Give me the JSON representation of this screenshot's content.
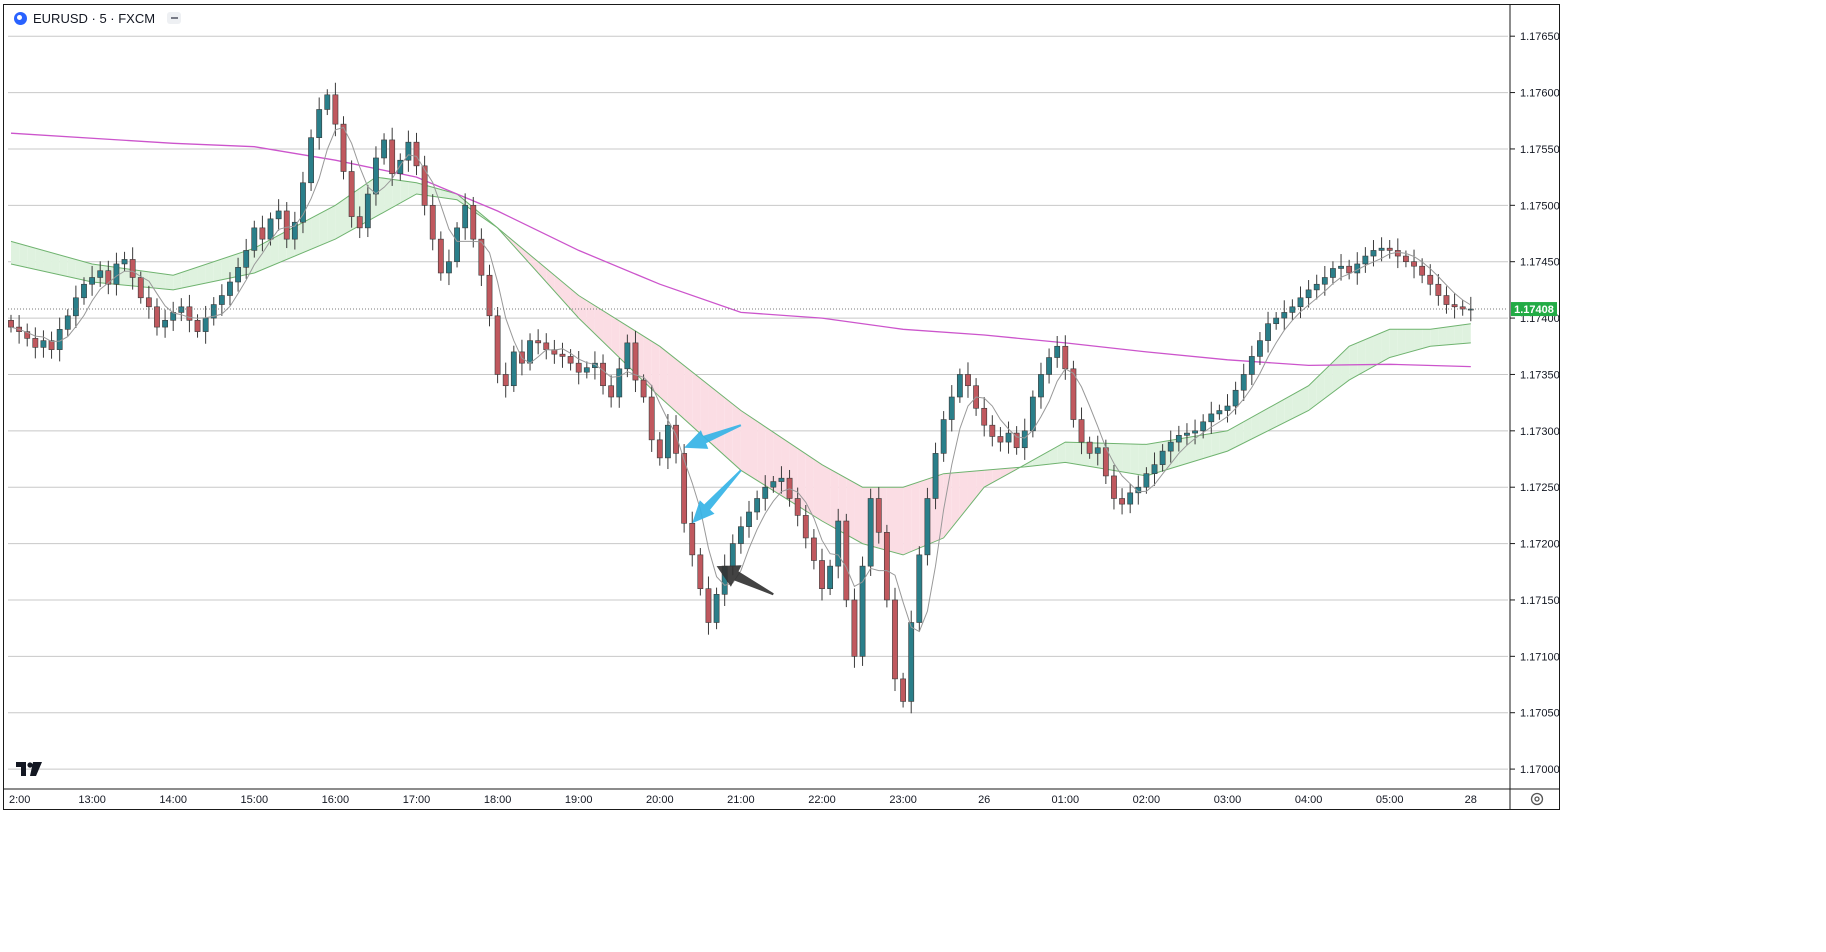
{
  "header": {
    "symbol_title": "EURUSD · 5 · FXCM",
    "logo_icon": "fxcm-logo-icon",
    "collapse_icon": "minus-icon"
  },
  "price_scale": {
    "labels": [
      "1.17650",
      "1.17600",
      "1.17550",
      "1.17500",
      "1.17450",
      "1.17400",
      "1.17350",
      "1.17300",
      "1.17250",
      "1.17200",
      "1.17150",
      "1.17100",
      "1.17050",
      "1.17000"
    ],
    "current_price_label": "1.17408"
  },
  "time_scale": {
    "labels": [
      "2:00",
      "13:00",
      "14:00",
      "15:00",
      "16:00",
      "17:00",
      "18:00",
      "19:00",
      "20:00",
      "21:00",
      "22:00",
      "23:00",
      "26",
      "01:00",
      "02:00",
      "03:00",
      "04:00",
      "05:00",
      "28"
    ]
  },
  "watermark_icon": "tradingview-logo-icon",
  "settings_icon": "gear-icon",
  "colors": {
    "up_candle": "#2a7f8a",
    "down_candle": "#c0585e",
    "long_ma": "#cc55cc",
    "cloud_bull": "#dff2df",
    "cloud_bear": "#fbdde4",
    "cloud_line": "#6fb36f",
    "fast_ma": "#999999",
    "current_price_badge": "#22ab45",
    "arrow_blue": "#35b3e6",
    "arrow_dark": "#333333"
  },
  "chart_data": {
    "type": "candlestick",
    "symbol": "EURUSD",
    "timeframe": "5",
    "source": "FXCM",
    "ylim": [
      1.16985,
      1.17675
    ],
    "current_price": 1.17408,
    "grid": "horizontal",
    "x_ticks": [
      {
        "label": "2:00",
        "index": 0
      },
      {
        "label": "13:00",
        "index": 10
      },
      {
        "label": "14:00",
        "index": 20
      },
      {
        "label": "15:00",
        "index": 30
      },
      {
        "label": "16:00",
        "index": 40
      },
      {
        "label": "17:00",
        "index": 50
      },
      {
        "label": "18:00",
        "index": 60
      },
      {
        "label": "19:00",
        "index": 70
      },
      {
        "label": "20:00",
        "index": 80
      },
      {
        "label": "21:00",
        "index": 90
      },
      {
        "label": "22:00",
        "index": 100
      },
      {
        "label": "23:00",
        "index": 110
      },
      {
        "label": "26",
        "index": 120
      },
      {
        "label": "01:00",
        "index": 130
      },
      {
        "label": "02:00",
        "index": 140
      },
      {
        "label": "03:00",
        "index": 150
      },
      {
        "label": "04:00",
        "index": 160
      },
      {
        "label": "05:00",
        "index": 170
      },
      {
        "label": "28",
        "index": 180
      }
    ],
    "closes": [
      1.17392,
      1.17388,
      1.17382,
      1.17374,
      1.1738,
      1.17372,
      1.1739,
      1.17402,
      1.17418,
      1.1743,
      1.17436,
      1.17442,
      1.1743,
      1.17448,
      1.17452,
      1.17436,
      1.17418,
      1.1741,
      1.17392,
      1.17398,
      1.17405,
      1.1741,
      1.17398,
      1.17388,
      1.174,
      1.17412,
      1.1742,
      1.17432,
      1.17445,
      1.1746,
      1.1748,
      1.1747,
      1.17488,
      1.17495,
      1.1747,
      1.17485,
      1.1752,
      1.1756,
      1.17585,
      1.17598,
      1.17572,
      1.1753,
      1.1749,
      1.1748,
      1.1751,
      1.17542,
      1.17558,
      1.17528,
      1.1754,
      1.17556,
      1.17535,
      1.175,
      1.1747,
      1.1744,
      1.1745,
      1.1748,
      1.175,
      1.1747,
      1.17438,
      1.17402,
      1.1735,
      1.1734,
      1.1737,
      1.1736,
      1.1738,
      1.17378,
      1.17372,
      1.17368,
      1.17366,
      1.1736,
      1.17352,
      1.17356,
      1.1736,
      1.1734,
      1.1733,
      1.17355,
      1.17378,
      1.17345,
      1.1733,
      1.17292,
      1.17276,
      1.17305,
      1.1728,
      1.17218,
      1.1719,
      1.1716,
      1.1713,
      1.17155,
      1.1718,
      1.172,
      1.17215,
      1.17228,
      1.1724,
      1.1725,
      1.17255,
      1.17258,
      1.1724,
      1.17225,
      1.17205,
      1.17185,
      1.1716,
      1.1718,
      1.1722,
      1.1715,
      1.171,
      1.1718,
      1.1724,
      1.1721,
      1.1715,
      1.1708,
      1.1706,
      1.1713,
      1.1719,
      1.1724,
      1.1728,
      1.1731,
      1.1733,
      1.1735,
      1.1734,
      1.1732,
      1.17305,
      1.17295,
      1.1729,
      1.17298,
      1.17285,
      1.173,
      1.1733,
      1.1735,
      1.17365,
      1.17375,
      1.17355,
      1.1731,
      1.1729,
      1.1728,
      1.17285,
      1.1726,
      1.1724,
      1.17235,
      1.17245,
      1.1725,
      1.17262,
      1.1727,
      1.17282,
      1.1729,
      1.17296,
      1.17298,
      1.173,
      1.17308,
      1.17315,
      1.17318,
      1.17322,
      1.17336,
      1.1735,
      1.17366,
      1.1738,
      1.17395,
      1.174,
      1.17405,
      1.1741,
      1.17418,
      1.17425,
      1.1743,
      1.17436,
      1.17444,
      1.17446,
      1.1744,
      1.17448,
      1.17455,
      1.1746,
      1.17462,
      1.1746,
      1.17455,
      1.1745,
      1.17446,
      1.17438,
      1.1743,
      1.1742,
      1.17412,
      1.1741,
      1.17408,
      1.17408
    ],
    "long_ma": [
      [
        0,
        1.17564
      ],
      [
        20,
        1.17555
      ],
      [
        30,
        1.17552
      ],
      [
        40,
        1.1754
      ],
      [
        50,
        1.17525
      ],
      [
        60,
        1.17495
      ],
      [
        70,
        1.1746
      ],
      [
        80,
        1.1743
      ],
      [
        90,
        1.17405
      ],
      [
        100,
        1.174
      ],
      [
        110,
        1.1739
      ],
      [
        120,
        1.17385
      ],
      [
        130,
        1.17378
      ],
      [
        140,
        1.1737
      ],
      [
        150,
        1.17363
      ],
      [
        160,
        1.17358
      ],
      [
        170,
        1.17359
      ],
      [
        180,
        1.17357
      ]
    ],
    "cloud_fast": [
      [
        0,
        1.17468
      ],
      [
        10,
        1.17448
      ],
      [
        20,
        1.17438
      ],
      [
        30,
        1.17462
      ],
      [
        40,
        1.175
      ],
      [
        45,
        1.17525
      ],
      [
        50,
        1.1752
      ],
      [
        55,
        1.1751
      ],
      [
        60,
        1.1748
      ],
      [
        70,
        1.174
      ],
      [
        80,
        1.1733
      ],
      [
        90,
        1.17265
      ],
      [
        100,
        1.1722
      ],
      [
        105,
        1.172
      ],
      [
        110,
        1.1719
      ],
      [
        115,
        1.17205
      ],
      [
        120,
        1.1725
      ],
      [
        125,
        1.1727
      ],
      [
        130,
        1.1729
      ],
      [
        140,
        1.17288
      ],
      [
        150,
        1.173
      ],
      [
        160,
        1.1734
      ],
      [
        165,
        1.17375
      ],
      [
        170,
        1.1739
      ],
      [
        175,
        1.1739
      ],
      [
        180,
        1.17395
      ]
    ],
    "cloud_slow": [
      [
        0,
        1.17448
      ],
      [
        10,
        1.17432
      ],
      [
        20,
        1.17425
      ],
      [
        30,
        1.1744
      ],
      [
        40,
        1.1747
      ],
      [
        45,
        1.1749
      ],
      [
        50,
        1.1751
      ],
      [
        55,
        1.17505
      ],
      [
        60,
        1.1748
      ],
      [
        70,
        1.1742
      ],
      [
        80,
        1.17375
      ],
      [
        90,
        1.17318
      ],
      [
        100,
        1.1727
      ],
      [
        105,
        1.1725
      ],
      [
        110,
        1.1725
      ],
      [
        115,
        1.17262
      ],
      [
        120,
        1.17265
      ],
      [
        125,
        1.17268
      ],
      [
        130,
        1.17272
      ],
      [
        140,
        1.1726
      ],
      [
        150,
        1.17282
      ],
      [
        160,
        1.17318
      ],
      [
        165,
        1.17345
      ],
      [
        170,
        1.17365
      ],
      [
        175,
        1.17375
      ],
      [
        180,
        1.17378
      ]
    ],
    "annotations": [
      {
        "type": "arrow",
        "color": "blue",
        "from_index": 90,
        "from_price": 1.17305,
        "to_index": 83,
        "to_price": 1.17285
      },
      {
        "type": "arrow",
        "color": "blue",
        "from_index": 90,
        "from_price": 1.17265,
        "to_index": 84,
        "to_price": 1.17218
      },
      {
        "type": "arrow",
        "color": "dark",
        "from_index": 94,
        "from_price": 1.17155,
        "to_index": 87,
        "to_price": 1.1718
      }
    ]
  }
}
